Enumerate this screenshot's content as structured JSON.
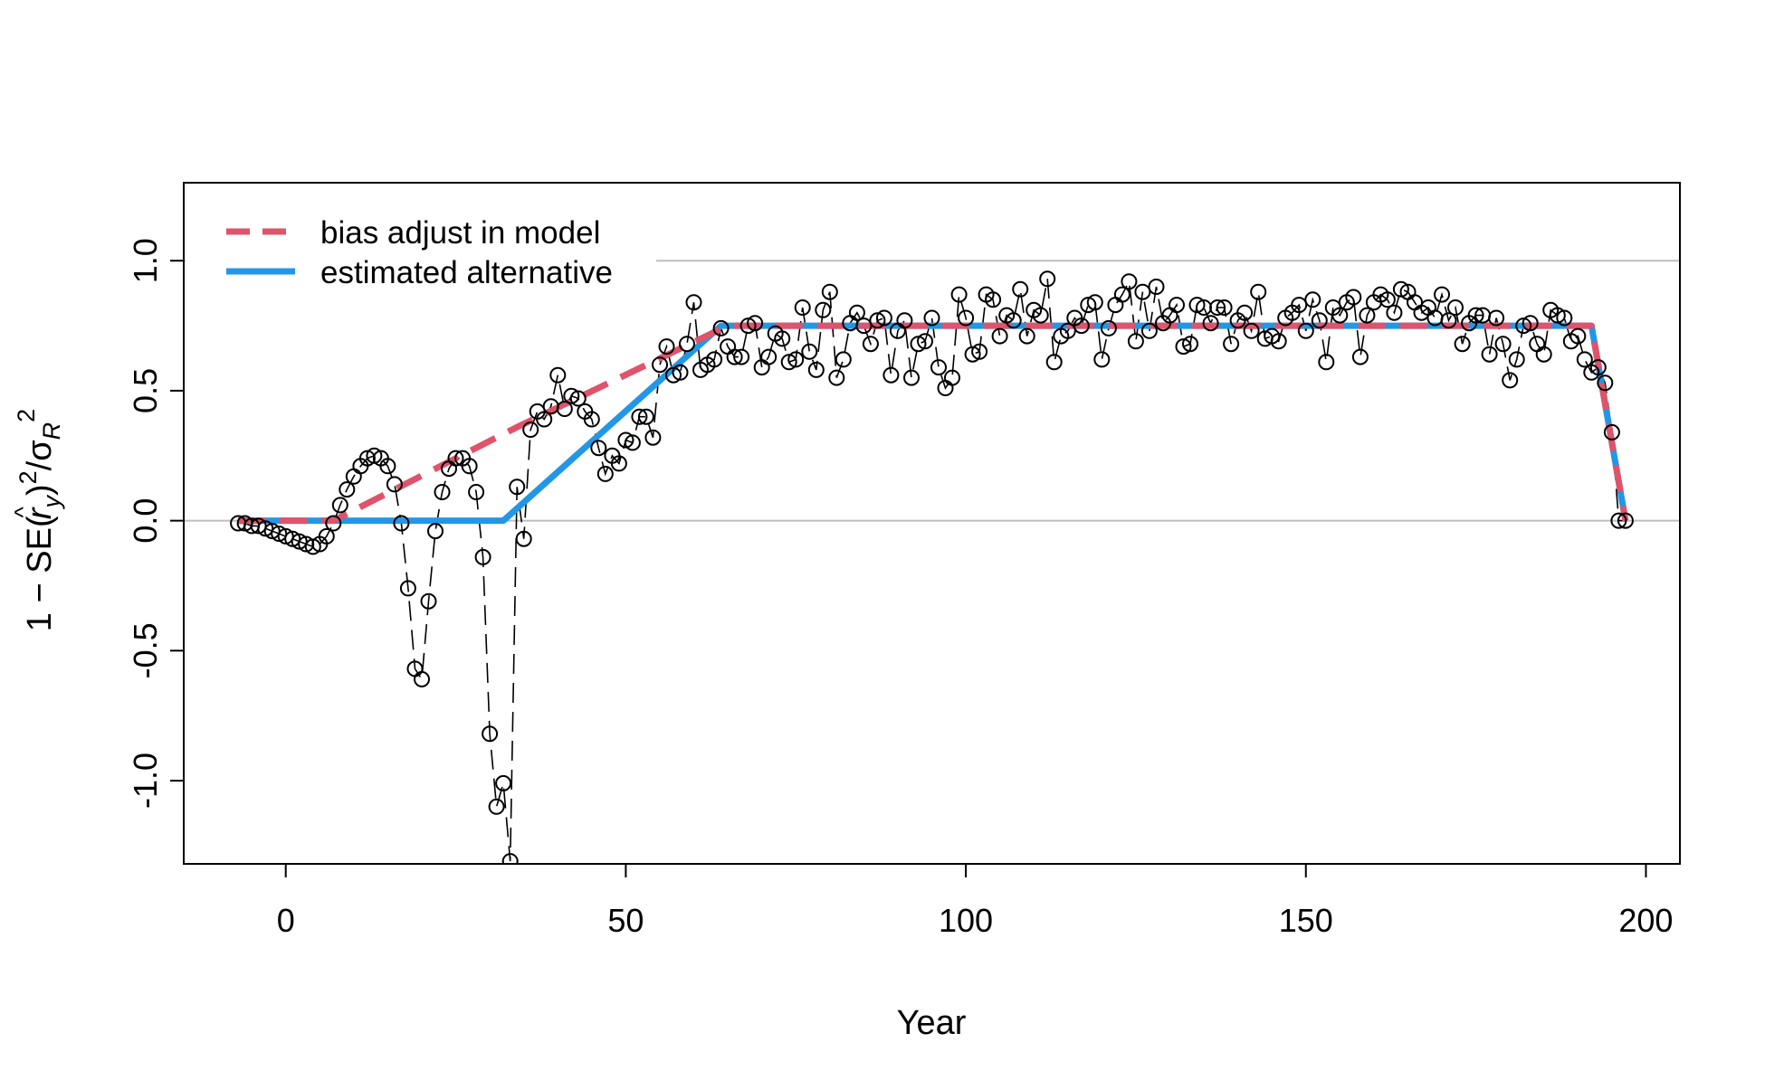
{
  "chart_data": {
    "type": "line",
    "title": "",
    "xlabel": "Year",
    "ylabel": {
      "prefix": "1 − SE(",
      "hat": "^",
      "r": "r",
      "y_sub": "y",
      "mid": ")",
      "sq1": "2",
      "slash": "/σ",
      "R_sub": "R",
      "sq2": "2"
    },
    "xlim": [
      -15,
      205
    ],
    "ylim": [
      -1.32,
      1.3
    ],
    "xticks": [
      0,
      50,
      100,
      150,
      200
    ],
    "xtick_labels": [
      "0",
      "50",
      "100",
      "150",
      "200"
    ],
    "yticks": [
      -1.0,
      -0.5,
      0.0,
      0.5,
      1.0
    ],
    "ytick_labels": [
      "-1.0",
      "-0.5",
      "0.0",
      "0.5",
      "1.0"
    ],
    "reference_lines": [
      0,
      1
    ],
    "legend": {
      "position": "top-left",
      "entries": [
        {
          "label": "bias adjust in model",
          "color": "#DF536B",
          "style": "dashed"
        },
        {
          "label": "estimated alternative",
          "color": "#2297E6",
          "style": "solid"
        }
      ]
    },
    "colors": {
      "grid_ref": "#BEBEBE",
      "points": "#000000",
      "bias_adjust": "#DF536B",
      "estimated": "#2297E6"
    },
    "series": [
      {
        "name": "bias adjust in model",
        "style": "dashed",
        "x": [
          -7,
          7,
          34,
          65,
          192,
          197
        ],
        "y": [
          0,
          0,
          0.36,
          0.75,
          0.75,
          0
        ]
      },
      {
        "name": "estimated alternative",
        "style": "solid",
        "x": [
          -7,
          32,
          64,
          192,
          197
        ],
        "y": [
          0,
          0,
          0.75,
          0.75,
          0
        ]
      }
    ],
    "points": {
      "x": [
        -7,
        -6,
        -5,
        -4,
        -3,
        -2,
        -1,
        0,
        1,
        2,
        3,
        4,
        5,
        6,
        7,
        8,
        9,
        10,
        11,
        12,
        13,
        14,
        15,
        16,
        17,
        18,
        19,
        20,
        21,
        22,
        23,
        24,
        25,
        26,
        27,
        28,
        29,
        30,
        31,
        32,
        33,
        34,
        35,
        36,
        37,
        38,
        39,
        40,
        41,
        42,
        43,
        44,
        45,
        46,
        47,
        48,
        49,
        50,
        51,
        52,
        53,
        54,
        55,
        56,
        57,
        58,
        59,
        60,
        61,
        62,
        63,
        64,
        65,
        66,
        67,
        68,
        69,
        70,
        71,
        72,
        73,
        74,
        75,
        76,
        77,
        78,
        79,
        80,
        81,
        82,
        83,
        84,
        85,
        86,
        87,
        88,
        89,
        90,
        91,
        92,
        93,
        94,
        95,
        96,
        97,
        98,
        99,
        100,
        101,
        102,
        103,
        104,
        105,
        106,
        107,
        108,
        109,
        110,
        111,
        112,
        113,
        114,
        115,
        116,
        117,
        118,
        119,
        120,
        121,
        122,
        123,
        124,
        125,
        126,
        127,
        128,
        129,
        130,
        131,
        132,
        133,
        134,
        135,
        136,
        137,
        138,
        139,
        140,
        141,
        142,
        143,
        144,
        145,
        146,
        147,
        148,
        149,
        150,
        151,
        152,
        153,
        154,
        155,
        156,
        157,
        158,
        159,
        160,
        161,
        162,
        163,
        164,
        165,
        166,
        167,
        168,
        169,
        170,
        171,
        172,
        173,
        174,
        175,
        176,
        177,
        178,
        179,
        180,
        181,
        182,
        183,
        184,
        185,
        186,
        187,
        188,
        189,
        190,
        191,
        192,
        193,
        194,
        195,
        196,
        197
      ],
      "y": [
        -0.01,
        -0.01,
        -0.02,
        -0.02,
        -0.03,
        -0.04,
        -0.05,
        -0.06,
        -0.07,
        -0.08,
        -0.09,
        -0.1,
        -0.09,
        -0.06,
        -0.01,
        0.06,
        0.12,
        0.17,
        0.21,
        0.24,
        0.25,
        0.24,
        0.21,
        0.14,
        -0.01,
        -0.26,
        -0.57,
        -0.61,
        -0.31,
        -0.04,
        0.11,
        0.2,
        0.24,
        0.24,
        0.21,
        0.11,
        -0.14,
        -0.82,
        -1.1,
        -1.01,
        -1.31,
        0.13,
        -0.07,
        0.35,
        0.42,
        0.39,
        0.44,
        0.56,
        0.43,
        0.48,
        0.47,
        0.42,
        0.39,
        0.28,
        0.18,
        0.25,
        0.22,
        0.31,
        0.3,
        0.4,
        0.4,
        0.32,
        0.6,
        0.67,
        0.56,
        0.57,
        0.68,
        0.84,
        0.58,
        0.6,
        0.62,
        0.74,
        0.67,
        0.63,
        0.63,
        0.75,
        0.76,
        0.59,
        0.63,
        0.72,
        0.7,
        0.61,
        0.62,
        0.82,
        0.65,
        0.58,
        0.81,
        0.88,
        0.55,
        0.62,
        0.76,
        0.8,
        0.75,
        0.68,
        0.77,
        0.78,
        0.56,
        0.73,
        0.77,
        0.55,
        0.68,
        0.69,
        0.78,
        0.59,
        0.51,
        0.55,
        0.87,
        0.78,
        0.64,
        0.65,
        0.87,
        0.85,
        0.71,
        0.79,
        0.77,
        0.89,
        0.71,
        0.81,
        0.79,
        0.93,
        0.61,
        0.71,
        0.73,
        0.78,
        0.75,
        0.83,
        0.84,
        0.62,
        0.74,
        0.83,
        0.87,
        0.92,
        0.69,
        0.88,
        0.73,
        0.9,
        0.76,
        0.79,
        0.83,
        0.67,
        0.68,
        0.83,
        0.82,
        0.76,
        0.82,
        0.82,
        0.68,
        0.77,
        0.8,
        0.73,
        0.88,
        0.7,
        0.71,
        0.69,
        0.78,
        0.8,
        0.83,
        0.73,
        0.85,
        0.77,
        0.61,
        0.82,
        0.79,
        0.84,
        0.86,
        0.63,
        0.79,
        0.84,
        0.87,
        0.85,
        0.8,
        0.89,
        0.88,
        0.84,
        0.8,
        0.82,
        0.78,
        0.87,
        0.77,
        0.82,
        0.68,
        0.76,
        0.79,
        0.79,
        0.64,
        0.78,
        0.68,
        0.54,
        0.62,
        0.75,
        0.76,
        0.68,
        0.64,
        0.81,
        0.79,
        0.78,
        0.69,
        0.71,
        0.62,
        0.57,
        0.59,
        0.53,
        0.34,
        0.0,
        0.0
      ]
    }
  }
}
